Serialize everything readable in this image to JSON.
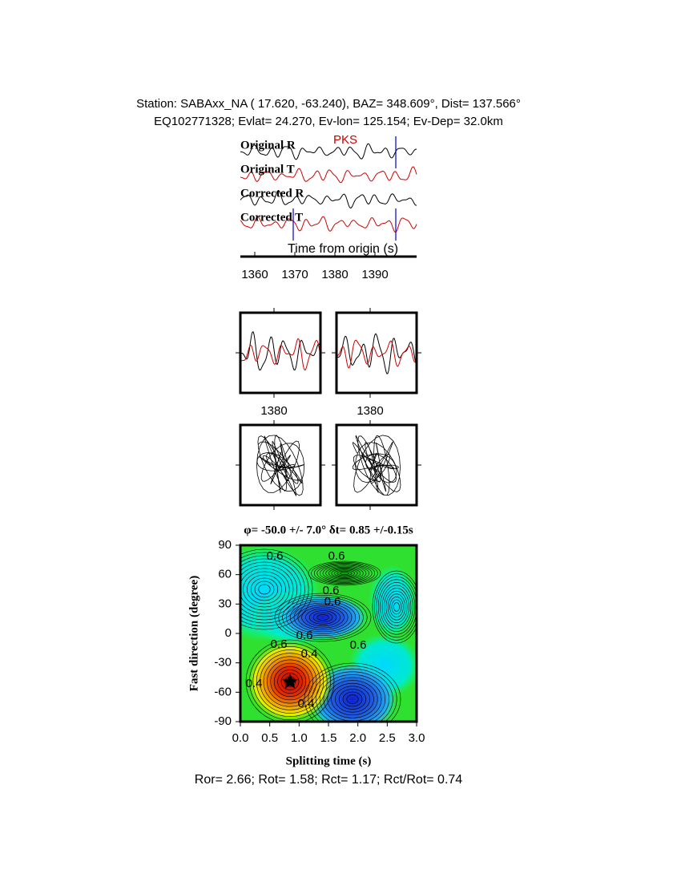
{
  "header": {
    "station_line": "Station: SABAxx_NA (  17.620,  -63.240), BAZ=  348.609°, Dist=  137.566°",
    "event_line": "EQ102771328; Evlat=  24.270, Ev-lon= 125.154; Ev-Dep= 32.0km"
  },
  "traces": {
    "labels": [
      "Original R",
      "Original T",
      "Corrected R",
      "Corrected T"
    ],
    "phase": "PKS",
    "axis_label": "Time from origin (s)",
    "ticks": [
      1360,
      1370,
      1380,
      1390
    ]
  },
  "windows": {
    "ticks": [
      1380,
      1380
    ]
  },
  "grid": {
    "title": "φ= -50.0 +/- 7.0° δt= 0.85 +/-0.15s",
    "y_label": "Fast direction (degree)",
    "x_label": "Splitting time (s)",
    "yticks": [
      90,
      60,
      30,
      0,
      -30,
      -60,
      -90
    ],
    "xticks": [
      {
        "value": 0,
        "label": "0.0"
      },
      {
        "value": 0.5,
        "label": "0.5"
      },
      {
        "value": 1,
        "label": "1.0"
      },
      {
        "value": 1.5,
        "label": "1.5"
      },
      {
        "value": 2,
        "label": "2.0"
      },
      {
        "value": 2.5,
        "label": "2.5"
      },
      {
        "value": 3,
        "label": "3.0"
      }
    ],
    "contour_labels": [
      "0.6",
      "0.6",
      "0.6",
      "0.6",
      "0.6",
      "0.6",
      "0.6",
      "0.4",
      "0.4",
      "0.4"
    ]
  },
  "footer": "Ror= 2.66; Rot= 1.58; Rct= 1.17; Rct/Rot= 0.74"
}
